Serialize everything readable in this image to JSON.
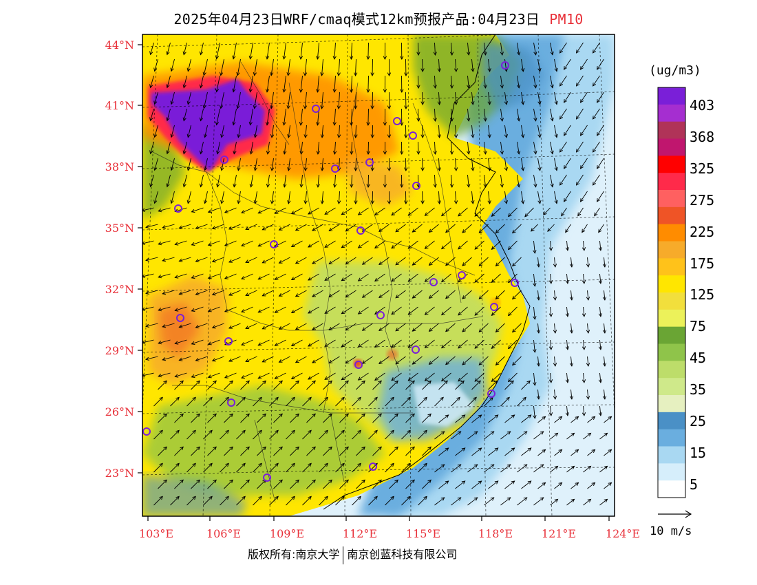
{
  "title": {
    "main": "2025年04月23日WRF/cmaq模式12km预报产品:04月23日",
    "parameter": "PM10",
    "parameter_color": "#e8313a"
  },
  "axes": {
    "lat_labels": [
      "44°N",
      "41°N",
      "38°N",
      "35°N",
      "32°N",
      "29°N",
      "26°N",
      "23°N"
    ],
    "lon_labels": [
      "103°E",
      "106°E",
      "109°E",
      "112°E",
      "115°E",
      "118°E",
      "121°E",
      "124°E"
    ],
    "label_color": "#e8313a"
  },
  "colorbar": {
    "unit": "(ug/m3)",
    "colors": [
      "#7a1fd8",
      "#a52ed0",
      "#b03358",
      "#c0166e",
      "#ff0000",
      "#ff2a4a",
      "#ff6060",
      "#ef5426",
      "#ff8c00",
      "#f7ab2a",
      "#ffc21a",
      "#ffe600",
      "#f2df3c",
      "#ecf15a",
      "#6aa534",
      "#8fc44a",
      "#bddd6a",
      "#cfe98a",
      "#e6f0c0",
      "#4a90c6",
      "#6aaedf",
      "#a9d8f2",
      "#d6eefb",
      "#ffffff"
    ],
    "labels": [
      "403",
      "368",
      "325",
      "275",
      "225",
      "175",
      "125",
      "75",
      "45",
      "35",
      "25",
      "15",
      "5"
    ]
  },
  "wind_reference": {
    "label": "10 m/s"
  },
  "footer": {
    "part1": "版权所有:南京大学",
    "part2": "南京创蓝科技有限公司"
  },
  "colors": {
    "land_base": "#ffe600",
    "ocean": "#dff1fb",
    "marker": "#7a1fd8",
    "vector": "#000000"
  }
}
